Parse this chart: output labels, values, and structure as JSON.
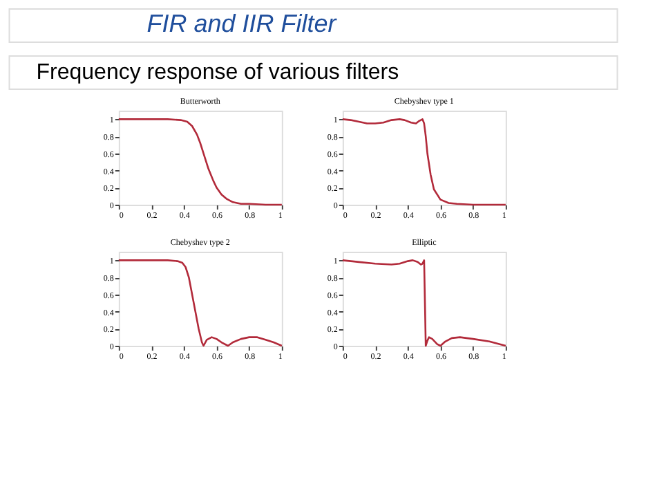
{
  "chart_data": [
    {
      "type": "line",
      "title": "Butterworth",
      "annotations": [
        "FIR and IIR Filter",
        "Frequency response of various filters"
      ],
      "xlim": [
        0,
        1
      ],
      "ylim": [
        0,
        1.1
      ],
      "xticks": [
        0,
        0.2,
        0.4,
        0.6,
        0.8,
        1
      ],
      "yticks": [
        0,
        0.2,
        0.4,
        0.6,
        0.8,
        1
      ],
      "grid": false,
      "series": [
        {
          "color": "#b22a3a",
          "x": [
            0,
            0.1,
            0.2,
            0.3,
            0.38,
            0.42,
            0.45,
            0.48,
            0.5,
            0.52,
            0.55,
            0.58,
            0.6,
            0.63,
            0.66,
            0.7,
            0.75,
            0.8,
            0.9,
            1
          ],
          "values": [
            1,
            1,
            1,
            1,
            0.99,
            0.97,
            0.92,
            0.82,
            0.72,
            0.6,
            0.42,
            0.28,
            0.2,
            0.12,
            0.07,
            0.03,
            0.01,
            0.01,
            0,
            0
          ]
        }
      ]
    },
    {
      "type": "line",
      "title": "Chebyshev type 1",
      "xlim": [
        0,
        1
      ],
      "ylim": [
        0,
        1.1
      ],
      "xticks": [
        0,
        0.2,
        0.4,
        0.6,
        0.8,
        1
      ],
      "yticks": [
        0,
        0.2,
        0.4,
        0.6,
        0.8,
        1
      ],
      "grid": false,
      "series": [
        {
          "color": "#b22a3a",
          "x": [
            0,
            0.05,
            0.1,
            0.15,
            0.2,
            0.25,
            0.3,
            0.35,
            0.38,
            0.42,
            0.45,
            0.47,
            0.49,
            0.5,
            0.51,
            0.52,
            0.54,
            0.56,
            0.6,
            0.65,
            0.7,
            0.8,
            1
          ],
          "values": [
            1,
            0.99,
            0.97,
            0.95,
            0.95,
            0.96,
            0.99,
            1,
            0.99,
            0.96,
            0.95,
            0.98,
            1,
            0.95,
            0.8,
            0.6,
            0.35,
            0.18,
            0.06,
            0.02,
            0.01,
            0,
            0
          ]
        }
      ]
    },
    {
      "type": "line",
      "title": "Chebyshev type 2",
      "xlim": [
        0,
        1
      ],
      "ylim": [
        0,
        1.1
      ],
      "xticks": [
        0,
        0.2,
        0.4,
        0.6,
        0.8,
        1
      ],
      "yticks": [
        0,
        0.2,
        0.4,
        0.6,
        0.8,
        1
      ],
      "grid": false,
      "series": [
        {
          "color": "#b22a3a",
          "x": [
            0,
            0.1,
            0.2,
            0.3,
            0.36,
            0.39,
            0.41,
            0.43,
            0.45,
            0.47,
            0.49,
            0.51,
            0.52,
            0.54,
            0.57,
            0.6,
            0.63,
            0.67,
            0.7,
            0.75,
            0.8,
            0.85,
            0.9,
            0.95,
            1
          ],
          "values": [
            1,
            1,
            1,
            1,
            0.99,
            0.97,
            0.92,
            0.8,
            0.6,
            0.4,
            0.2,
            0.04,
            0,
            0.07,
            0.1,
            0.08,
            0.04,
            0,
            0.04,
            0.08,
            0.1,
            0.1,
            0.07,
            0.04,
            0
          ]
        }
      ]
    },
    {
      "type": "line",
      "title": "Elliptic",
      "xlim": [
        0,
        1
      ],
      "ylim": [
        0,
        1.1
      ],
      "xticks": [
        0,
        0.2,
        0.4,
        0.6,
        0.8,
        1
      ],
      "yticks": [
        0,
        0.2,
        0.4,
        0.6,
        0.8,
        1
      ],
      "grid": false,
      "series": [
        {
          "color": "#b22a3a",
          "x": [
            0,
            0.1,
            0.2,
            0.3,
            0.35,
            0.4,
            0.43,
            0.46,
            0.48,
            0.49,
            0.5,
            0.505,
            0.51,
            0.52,
            0.53,
            0.55,
            0.58,
            0.6,
            0.63,
            0.67,
            0.72,
            0.8,
            0.9,
            1
          ],
          "values": [
            1,
            0.98,
            0.96,
            0.95,
            0.96,
            0.99,
            1,
            0.98,
            0.95,
            0.96,
            1,
            0.5,
            0,
            0.06,
            0.1,
            0.08,
            0.02,
            0,
            0.05,
            0.09,
            0.1,
            0.08,
            0.05,
            0
          ]
        }
      ]
    }
  ]
}
